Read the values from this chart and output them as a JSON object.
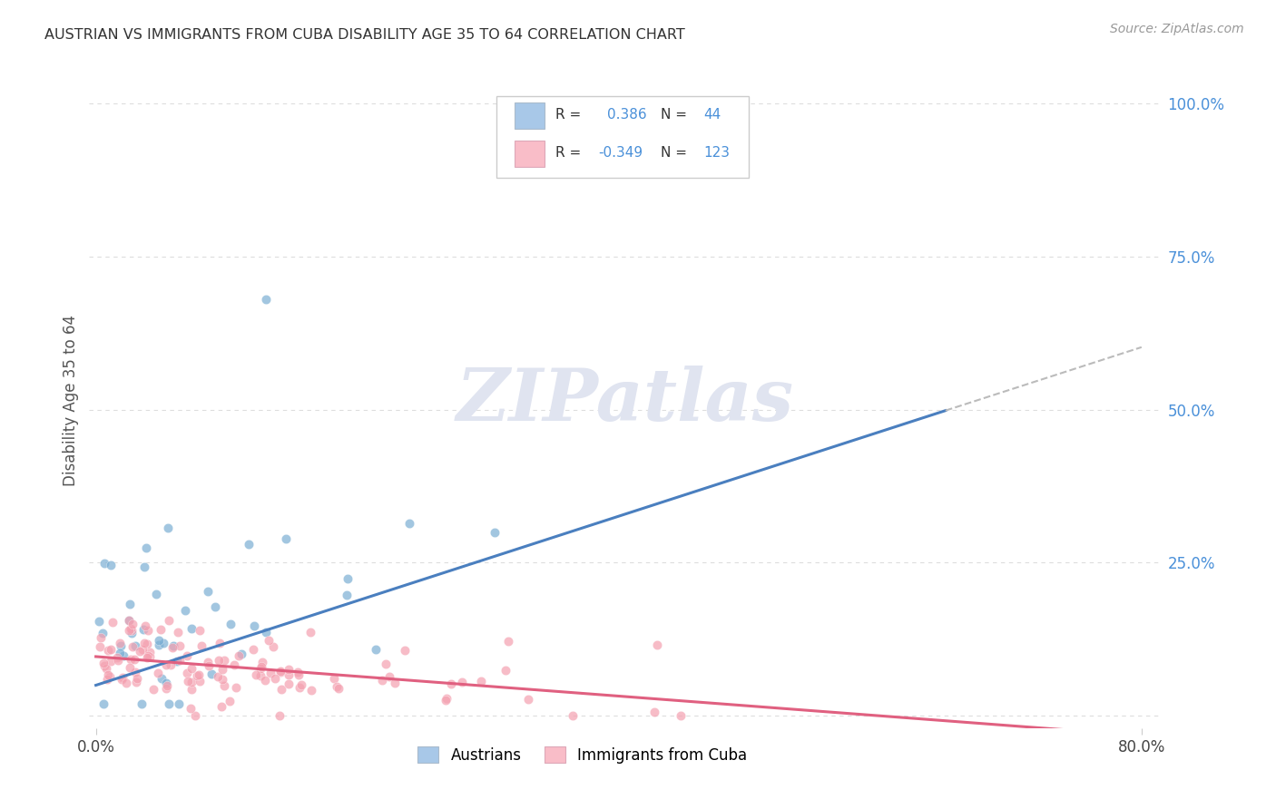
{
  "title": "AUSTRIAN VS IMMIGRANTS FROM CUBA DISABILITY AGE 35 TO 64 CORRELATION CHART",
  "source": "Source: ZipAtlas.com",
  "ylabel": "Disability Age 35 to 64",
  "austrians_R": 0.386,
  "austrians_N": 44,
  "cuba_R": -0.349,
  "cuba_N": 123,
  "blue_color": "#7BAFD4",
  "pink_color": "#F4A0B0",
  "legend_blue_box": "#A8C8E8",
  "legend_pink_box": "#F9BDC8",
  "x_min": 0.0,
  "x_max": 0.8,
  "y_min": -0.02,
  "y_max": 1.05,
  "watermark_text": "ZIPatlas",
  "watermark_color": "#E0E4F0",
  "background_color": "#FFFFFF",
  "grid_color": "#DDDDDD",
  "blue_line_color": "#4A7FBF",
  "pink_line_color": "#E06080",
  "dash_line_color": "#BBBBBB",
  "right_tick_color": "#4A90D9",
  "title_color": "#333333",
  "source_color": "#999999"
}
